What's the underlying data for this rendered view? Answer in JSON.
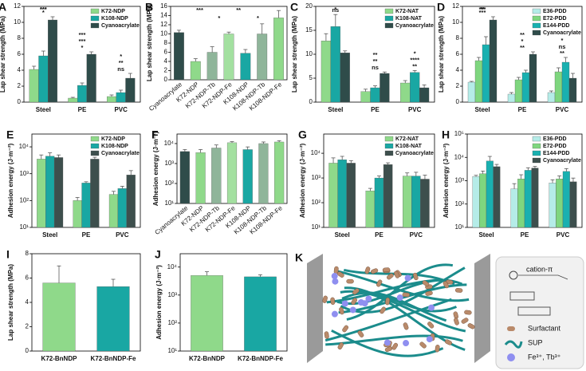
{
  "chart_data": [
    {
      "label": "A",
      "type": "bar",
      "ylabel": "Lap shear strength (MPa)",
      "categories": [
        "Steel",
        "PE",
        "PVC"
      ],
      "series": [
        {
          "name": "K72-NDP",
          "color": "#8fd98a",
          "values": [
            4.1,
            0.5,
            0.7
          ],
          "errors": [
            0.4,
            0.1,
            0.2
          ]
        },
        {
          "name": "K108-NDP",
          "color": "#19a7a3",
          "values": [
            5.8,
            2.1,
            1.2
          ],
          "errors": [
            0.6,
            0.3,
            0.3
          ]
        },
        {
          "name": "Cyanoacrylate",
          "color": "#2f4c4a",
          "values": [
            10.3,
            6.0,
            3.0
          ],
          "errors": [
            0.4,
            0.3,
            0.6
          ]
        }
      ],
      "ylim": [
        0,
        12
      ],
      "yticks": [
        0,
        2,
        4,
        6,
        8,
        10,
        12
      ],
      "annotations": [
        [
          "*",
          "***",
          "***"
        ],
        [
          "*",
          "***",
          "***"
        ],
        [
          "ns",
          "**",
          "*"
        ]
      ]
    },
    {
      "label": "B",
      "type": "bar",
      "ylabel": "Lap shear strength (MPa)",
      "categories": [
        "Cyanoacrylate",
        "K72-NDP",
        "K72-NDP-Tb",
        "K72-NDP-Fe",
        "K108-NDP",
        "K108-NDP-Tb",
        "K108-NDP-Fe"
      ],
      "values": [
        10.3,
        4.0,
        6.0,
        10.0,
        5.8,
        10.0,
        13.5
      ],
      "errors": [
        0.5,
        0.6,
        1.2,
        0.4,
        0.8,
        2.2,
        1.6
      ],
      "colors": [
        "#2f4c4a",
        "#8fd98a",
        "#8fb59a",
        "#a3e0a0",
        "#19a7a3",
        "#8fb59a",
        "#8fd98a"
      ],
      "ylim": [
        0,
        16
      ],
      "yticks": [
        0,
        2,
        4,
        6,
        8,
        10,
        12,
        14,
        16
      ],
      "annotations": [
        "***",
        "*",
        "**",
        "*"
      ]
    },
    {
      "label": "C",
      "type": "bar",
      "ylabel": "Lap shear strength (MPa)",
      "categories": [
        "Steel",
        "PE",
        "PVC"
      ],
      "series": [
        {
          "name": "K72-NAT",
          "color": "#8fd98a",
          "values": [
            12.8,
            2.2,
            4.0
          ],
          "errors": [
            1.5,
            0.5,
            0.5
          ]
        },
        {
          "name": "K108-NAT",
          "color": "#19a7a3",
          "values": [
            15.8,
            3.0,
            6.2
          ],
          "errors": [
            2.5,
            0.4,
            0.4
          ]
        },
        {
          "name": "Cyanoacrylate",
          "color": "#2f4c4a",
          "values": [
            10.3,
            6.0,
            3.0
          ],
          "errors": [
            0.4,
            0.3,
            0.6
          ]
        }
      ],
      "ylim": [
        0,
        20
      ],
      "yticks": [
        0,
        5,
        10,
        15,
        20
      ],
      "annotations": [
        [
          "ns",
          "*"
        ],
        [
          "ns",
          "**",
          "**"
        ],
        [
          "**",
          "****",
          "*"
        ]
      ]
    },
    {
      "label": "D",
      "type": "bar",
      "ylabel": "Lap shear strength (MPa)",
      "categories": [
        "Steel",
        "PE",
        "PVC"
      ],
      "series": [
        {
          "name": "E36-PDD",
          "color": "#b5ece8",
          "values": [
            2.5,
            1.0,
            1.2
          ],
          "errors": [
            0.1,
            0.2,
            0.2
          ]
        },
        {
          "name": "E72-PDD",
          "color": "#7fd67f",
          "values": [
            5.2,
            2.8,
            3.8
          ],
          "errors": [
            0.4,
            0.3,
            0.5
          ]
        },
        {
          "name": "E144-PDD",
          "color": "#19b0b0",
          "values": [
            7.2,
            3.7,
            5.0
          ],
          "errors": [
            1.0,
            0.3,
            0.6
          ]
        },
        {
          "name": "Cyanoacrylate",
          "color": "#2f4c4a",
          "values": [
            10.3,
            6.0,
            3.0
          ],
          "errors": [
            0.4,
            0.3,
            0.6
          ]
        }
      ],
      "ylim": [
        0,
        12
      ],
      "yticks": [
        0,
        2,
        4,
        6,
        8,
        10,
        12
      ],
      "annotations": [
        [
          "***",
          "*",
          "***",
          "**"
        ],
        [
          "**",
          "*",
          "**"
        ],
        [
          "**",
          "ns",
          "*"
        ]
      ]
    },
    {
      "label": "E",
      "type": "bar",
      "yscale": "log",
      "ylabel": "Adhesion energy (J·m⁻²)",
      "categories": [
        "Steel",
        "PE",
        "PVC"
      ],
      "series": [
        {
          "name": "K72-NDP",
          "color": "#8fd98a",
          "values": [
            3500,
            100,
            170
          ],
          "errors": [
            1500,
            30,
            50
          ]
        },
        {
          "name": "K108-NDP",
          "color": "#19a7a3",
          "values": [
            4500,
            450,
            280
          ],
          "errors": [
            1500,
            50,
            60
          ]
        },
        {
          "name": "Cyanoacrylate",
          "color": "#3d4f4d",
          "values": [
            4000,
            3500,
            900
          ],
          "errors": [
            1000,
            600,
            400
          ]
        }
      ],
      "ylim": [
        10,
        30000
      ],
      "yticks": [
        {
          "value": 10,
          "label": "10¹"
        },
        {
          "value": 100,
          "label": "10²"
        },
        {
          "value": 1000,
          "label": "10³"
        },
        {
          "value": 10000,
          "label": "10⁴"
        }
      ]
    },
    {
      "label": "F",
      "type": "bar",
      "yscale": "log",
      "ylabel": "Adhesion energy (J·m⁻²)",
      "categories": [
        "Cyanoacrylate",
        "K72-NDP",
        "K72-NDP-Tb",
        "K72-NDP-Fe",
        "K108-NDP",
        "K108-NDP-Tb",
        "K108-NDP-Fe"
      ],
      "values": [
        4000,
        3500,
        6000,
        11000,
        5000,
        10000,
        12000
      ],
      "errors": [
        1000,
        1500,
        2500,
        1500,
        1800,
        2000,
        2000
      ],
      "colors": [
        "#2f4c4a",
        "#8fd98a",
        "#8fb59a",
        "#a3e0a0",
        "#19a7a3",
        "#8fb59a",
        "#8fd98a"
      ],
      "ylim": [
        10,
        30000
      ],
      "yticks": [
        {
          "value": 10,
          "label": "10¹"
        },
        {
          "value": 100,
          "label": "10²"
        },
        {
          "value": 1000,
          "label": "10³"
        },
        {
          "value": 10000,
          "label": "10⁴"
        }
      ]
    },
    {
      "label": "G",
      "type": "bar",
      "yscale": "log",
      "ylabel": "Adhesion energy (J·m⁻²)",
      "categories": [
        "Steel",
        "PE",
        "PVC"
      ],
      "series": [
        {
          "name": "K72-NAT",
          "color": "#8fd98a",
          "values": [
            4000,
            300,
            1200
          ],
          "errors": [
            2500,
            80,
            400
          ]
        },
        {
          "name": "K108-NAT",
          "color": "#19a7a3",
          "values": [
            5500,
            1000,
            1200
          ],
          "errors": [
            2000,
            200,
            500
          ]
        },
        {
          "name": "Cyanoacrylate",
          "color": "#3d4f4d",
          "values": [
            4000,
            3500,
            900
          ],
          "errors": [
            1000,
            600,
            400
          ]
        }
      ],
      "ylim": [
        10,
        60000
      ],
      "yticks": [
        {
          "value": 10,
          "label": "10¹"
        },
        {
          "value": 100,
          "label": "10²"
        },
        {
          "value": 1000,
          "label": "10³"
        },
        {
          "value": 10000,
          "label": "10⁴"
        }
      ]
    },
    {
      "label": "H",
      "type": "bar",
      "yscale": "log",
      "ylabel": "Adhesion energy (J·m⁻²)",
      "categories": [
        "Steel",
        "PE",
        "PVC"
      ],
      "series": [
        {
          "name": "E36-PDD",
          "color": "#b5ece8",
          "values": [
            1500,
            450,
            800
          ],
          "errors": [
            200,
            300,
            300
          ]
        },
        {
          "name": "E72-PDD",
          "color": "#7fd67f",
          "values": [
            2000,
            1200,
            1200
          ],
          "errors": [
            600,
            600,
            400
          ]
        },
        {
          "name": "E144-PDD",
          "color": "#19b0b0",
          "values": [
            7000,
            2800,
            2500
          ],
          "errors": [
            4000,
            800,
            800
          ]
        },
        {
          "name": "Cyanoacrylate",
          "color": "#3d4f4d",
          "values": [
            4000,
            3500,
            900
          ],
          "errors": [
            1000,
            600,
            400
          ]
        }
      ],
      "ylim": [
        10,
        100000
      ],
      "yticks": [
        {
          "value": 10,
          "label": "10¹"
        },
        {
          "value": 100,
          "label": "10²"
        },
        {
          "value": 1000,
          "label": "10³"
        },
        {
          "value": 10000,
          "label": "10⁴"
        },
        {
          "value": 100000,
          "label": "10⁵"
        }
      ]
    },
    {
      "label": "I",
      "type": "bar",
      "ylabel": "Lap shear strength (MPa)",
      "categories": [
        "K72-BnNDP",
        "K72-BnNDP-Fe"
      ],
      "values": [
        5.6,
        5.3
      ],
      "errors": [
        1.4,
        0.6
      ],
      "colors": [
        "#8fd98a",
        "#19a7a3"
      ],
      "ylim": [
        0,
        8
      ],
      "yticks": [
        0,
        2,
        4,
        6,
        8
      ]
    },
    {
      "label": "J",
      "type": "bar",
      "yscale": "log",
      "ylabel": "Adhesion energy (J·m⁻²)",
      "categories": [
        "K72-BnNDP",
        "K72-BnNDP-Fe"
      ],
      "values": [
        5000,
        4500
      ],
      "errors": [
        1800,
        800
      ],
      "colors": [
        "#8fd98a",
        "#19a7a3"
      ],
      "ylim": [
        10,
        30000
      ],
      "yticks": [
        {
          "value": 10,
          "label": "10¹"
        },
        {
          "value": 100,
          "label": "10²"
        },
        {
          "value": 1000,
          "label": "10³"
        },
        {
          "value": 10000,
          "label": "10⁴"
        }
      ]
    }
  ],
  "diagram": {
    "label": "K",
    "cation_pi": "cation-π",
    "legend": [
      "Surfactant",
      "SUP",
      "Fe³⁺, Tb³⁺"
    ]
  }
}
